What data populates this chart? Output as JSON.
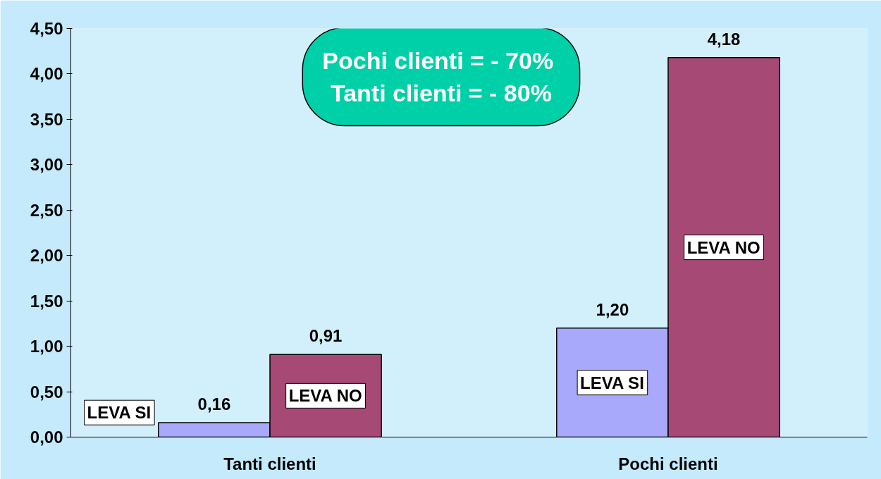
{
  "chart_data": {
    "type": "bar",
    "categories": [
      "Tanti clienti",
      "Pochi clienti"
    ],
    "series": [
      {
        "name": "LEVA SI",
        "color": "#a9a9fb",
        "values": [
          0.16,
          1.2
        ],
        "value_labels": [
          "0,16",
          "1,20"
        ]
      },
      {
        "name": "LEVA NO",
        "color": "#a64a75",
        "values": [
          0.91,
          4.18
        ],
        "value_labels": [
          "0,91",
          "4,18"
        ]
      }
    ],
    "ylim": [
      0,
      4.5
    ],
    "yticks": [
      {
        "value": 0,
        "label": "0,00"
      },
      {
        "value": 0.5,
        "label": "0,50"
      },
      {
        "value": 1,
        "label": "1,00"
      },
      {
        "value": 1.5,
        "label": "1,50"
      },
      {
        "value": 2,
        "label": "2,00"
      },
      {
        "value": 2.5,
        "label": "2,50"
      },
      {
        "value": 3,
        "label": "3,00"
      },
      {
        "value": 3.5,
        "label": "3,50"
      },
      {
        "value": 4,
        "label": "4,00"
      },
      {
        "value": 4.5,
        "label": "4,50"
      }
    ],
    "annotations": [
      "Pochi clienti =  - 70%",
      "Tanti clienti = - 80%"
    ],
    "grid": false
  }
}
